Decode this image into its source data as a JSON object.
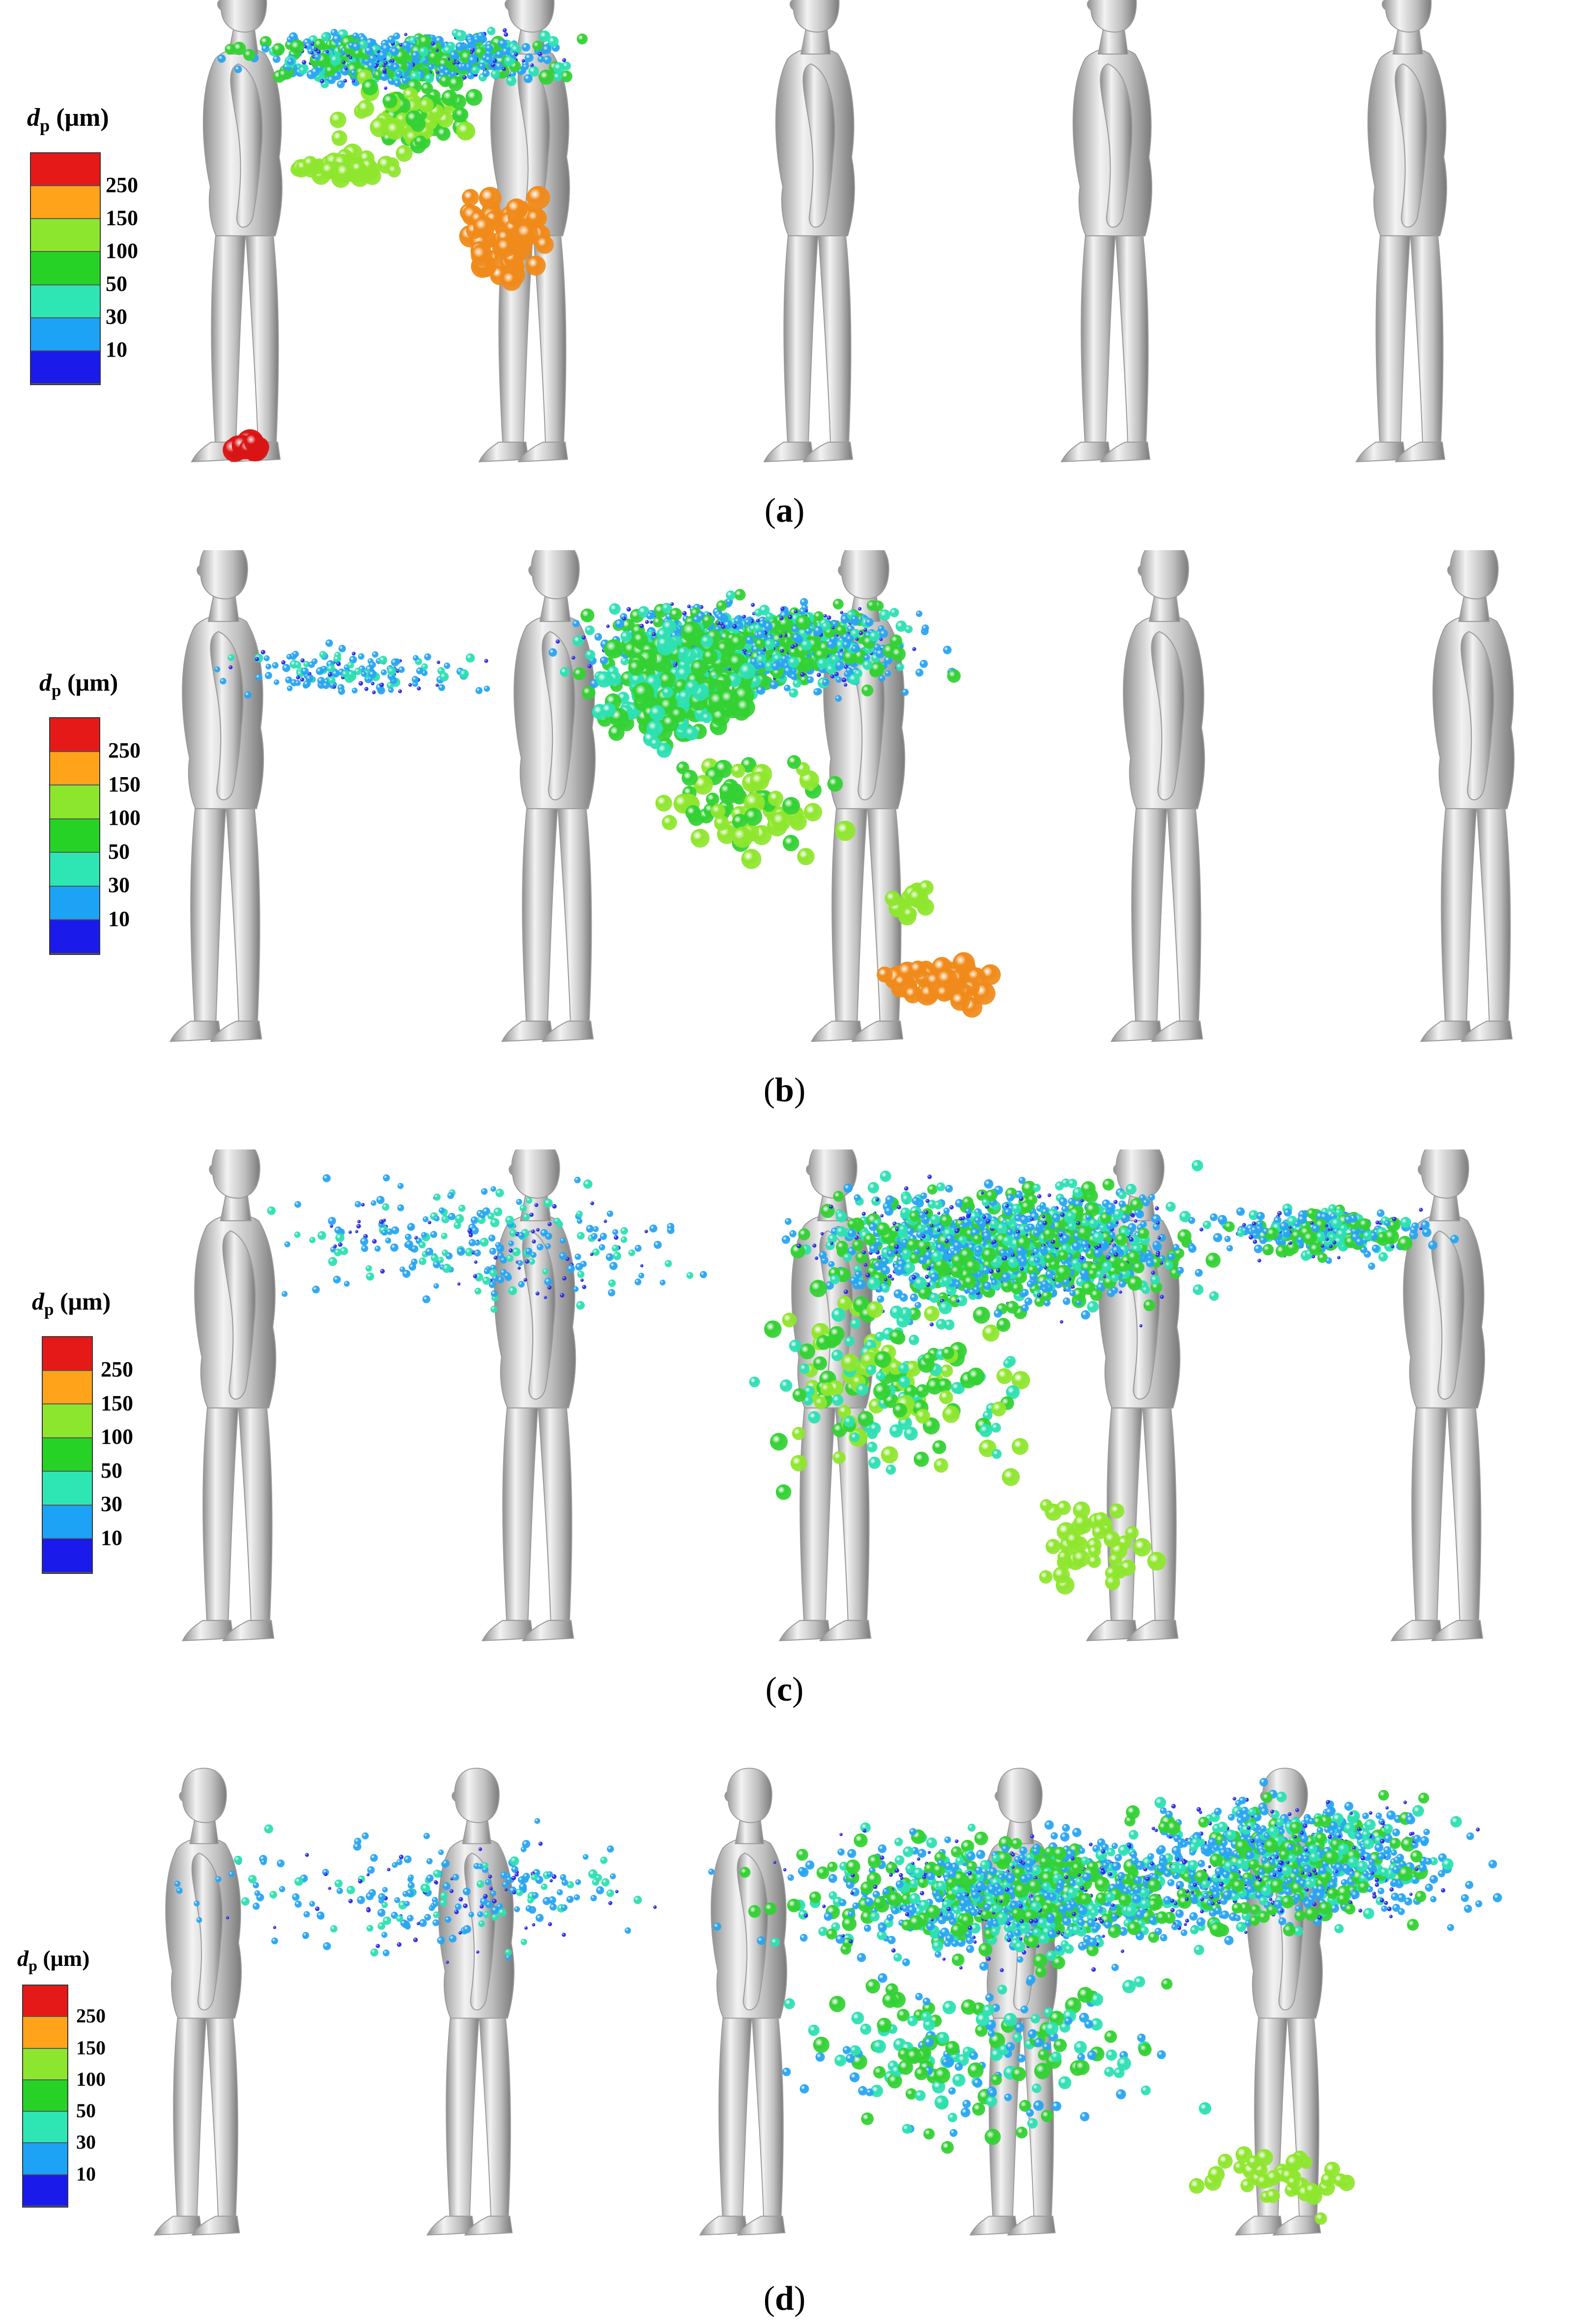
{
  "legend": {
    "title_symbol": "d",
    "title_subscript": "p",
    "title_unit": "(μm)",
    "ticks": [
      "250",
      "150",
      "100",
      "50",
      "30",
      "10"
    ],
    "colors": [
      "#e61919",
      "#ffa31a",
      "#8ce62e",
      "#27d227",
      "#2ee6b4",
      "#1ca3f5",
      "#1a1aeb"
    ]
  },
  "particle_palette": {
    "10": "#2a2ae0",
    "30": "#29a5f2",
    "50": "#2ee0b2",
    "100": "#33d133",
    "150": "#8fe62e",
    "250_orange": "#f08a1a",
    "250_red": "#d91414"
  },
  "mannequin_color": "#bfbfbf",
  "panels": [
    {
      "label": "a",
      "caption_open": "(",
      "caption_close": ")"
    },
    {
      "label": "b",
      "caption_open": "(",
      "caption_close": ")"
    },
    {
      "label": "c",
      "caption_open": "(",
      "caption_close": ")"
    },
    {
      "label": "d",
      "caption_open": "(",
      "caption_close": ")"
    }
  ]
}
